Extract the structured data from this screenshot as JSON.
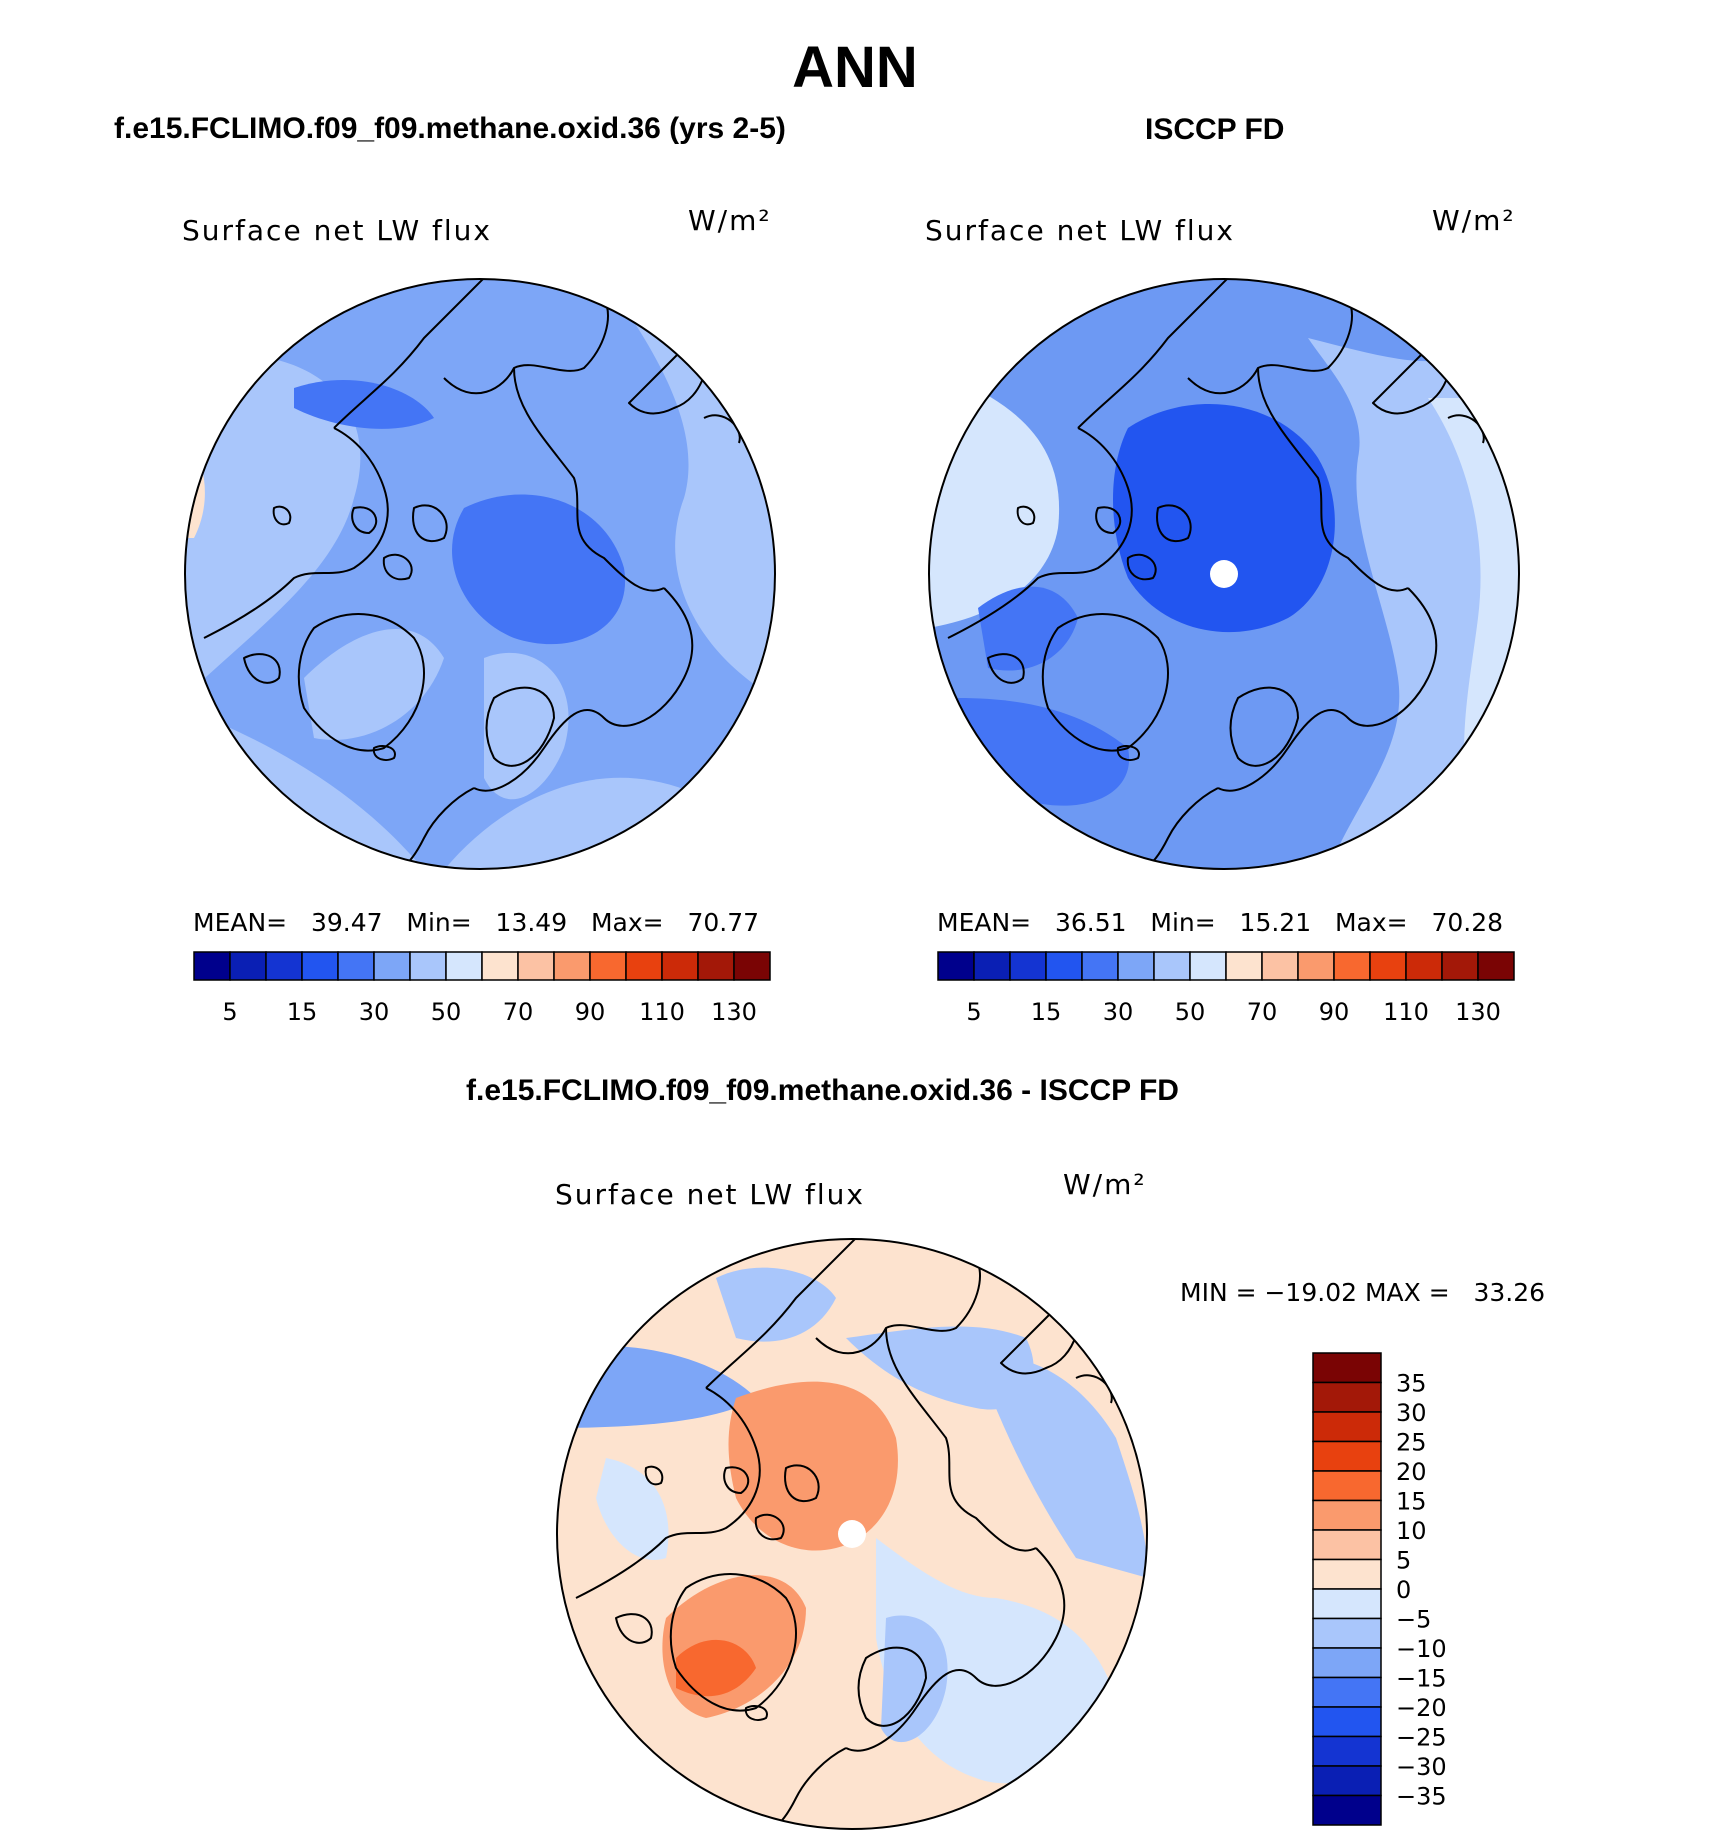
{
  "title": "ANN",
  "panels": [
    {
      "header": "f.e15.FCLIMO.f09_f09.methane.oxid.36 (yrs 2-5)",
      "variable": "Surface net LW flux",
      "units": "W/m²",
      "stats": {
        "mean_label": "MEAN=",
        "mean": "39.47",
        "min_label": "Min=",
        "min": "13.49",
        "max_label": "Max=",
        "max": "70.77"
      },
      "field": {
        "base_color": "#7da6f7",
        "pole_cap": false,
        "has_pole_marker": false
      }
    },
    {
      "header": "ISCCP FD",
      "variable": "Surface net LW flux",
      "units": "W/m²",
      "stats": {
        "mean_label": "MEAN=",
        "mean": "36.51",
        "min_label": "Min=",
        "min": "15.21",
        "max_label": "Max=",
        "max": "70.28"
      },
      "field": {
        "base_color": "#6d99f3",
        "pole_cap": true,
        "has_pole_marker": true
      }
    }
  ],
  "abs_colorbar": {
    "colors": [
      "#00008c",
      "#0a1fb4",
      "#1434d2",
      "#2255f0",
      "#4475f5",
      "#7da6f7",
      "#a9c6fb",
      "#d5e6fd",
      "#fde3cf",
      "#fcc2a4",
      "#fa9a6d",
      "#f8682f",
      "#e8410f",
      "#cc2a08",
      "#a31808",
      "#7a0404"
    ],
    "tick_labels": [
      "5",
      "15",
      "30",
      "50",
      "70",
      "90",
      "110",
      "130"
    ]
  },
  "diff_panel": {
    "header": "f.e15.FCLIMO.f09_f09.methane.oxid.36 - ISCCP FD",
    "variable": "Surface net LW flux",
    "units": "W/m²",
    "minmax_text": "MIN = −19.02 MAX =   33.26",
    "field": {
      "base_color": "#fde3cf",
      "has_pole_marker": true
    }
  },
  "diff_colorbar": {
    "colors": [
      "#7a0404",
      "#a31808",
      "#cc2a08",
      "#e8410f",
      "#f8682f",
      "#fa9a6d",
      "#fcc2a4",
      "#fde3cf",
      "#d5e6fd",
      "#a9c6fb",
      "#7da6f7",
      "#4475f5",
      "#2255f0",
      "#1434d2",
      "#0a1fb4",
      "#00008c"
    ],
    "tick_labels": [
      "35",
      "30",
      "25",
      "20",
      "15",
      "10",
      "5",
      "0",
      "−5",
      "−10",
      "−15",
      "−20",
      "−25",
      "−30",
      "−35"
    ]
  }
}
